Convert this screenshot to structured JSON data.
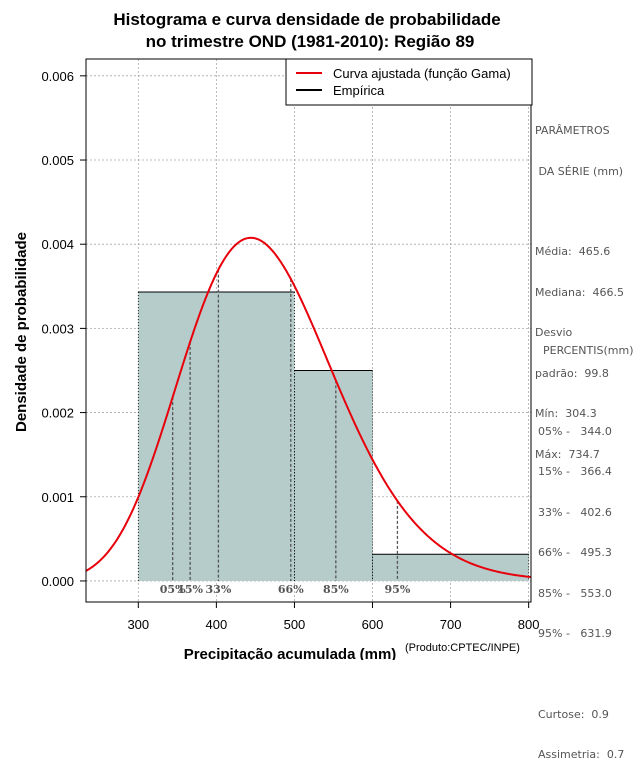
{
  "chart_data": {
    "type": "bar",
    "title_lines": [
      "Histograma e curva densidade de probabilidade",
      "no trimestre OND (1981-2010): Região 89"
    ],
    "xlabel": "Precipitação acumulada (mm)",
    "ylabel": "Densidade de probabilidade",
    "product_note": "(Produto:CPTEC/INPE)",
    "xlim": [
      233,
      803
    ],
    "ylim": [
      -0.00025,
      0.0062
    ],
    "xticks": [
      300,
      400,
      500,
      600,
      700,
      800
    ],
    "yticks": [
      0.0,
      0.001,
      0.002,
      0.003,
      0.004,
      0.005,
      0.006
    ],
    "ytick_labels": [
      "0.000",
      "0.001",
      "0.002",
      "0.003",
      "0.004",
      "0.005",
      "0.006"
    ],
    "grid": true,
    "bins": [
      {
        "from": 300,
        "to": 500,
        "density": 0.003433
      },
      {
        "from": 500,
        "to": 600,
        "density": 0.0025
      },
      {
        "from": 600,
        "to": 800,
        "density": 0.000317
      }
    ],
    "gamma_fit": {
      "mean": 465.6,
      "sd": 99.8
    },
    "percentiles": [
      {
        "label": "05%",
        "value": 344.0
      },
      {
        "label": "15%",
        "value": 366.4
      },
      {
        "label": "33%",
        "value": 402.6
      },
      {
        "label": "66%",
        "value": 495.3
      },
      {
        "label": "85%",
        "value": 553.0
      },
      {
        "label": "95%",
        "value": 631.9
      }
    ],
    "legend": {
      "position": "top-right",
      "entries": [
        {
          "label": "Curva ajustada (função Gama)",
          "color": "#e8000b"
        },
        {
          "label": "Empírica",
          "color": "#000000"
        }
      ]
    },
    "colors": {
      "bar": "#b5cccb",
      "curve": "#e8000b",
      "grid": "#a8a8a8",
      "axis": "#000000",
      "percentile_line": "#555555",
      "percentile_text": "#555555"
    }
  },
  "stats_panel": {
    "heading1": "PARÂMETROS",
    "heading2": " DA SÉRIE (mm)",
    "media": "Média:  465.6",
    "mediana": "Mediana:  466.5",
    "desvio1": "Desvio",
    "desvio2": "padrão:  99.8",
    "min": "Mín:  304.3",
    "max": "Máx:  734.7"
  },
  "percentis_panel": {
    "heading": "PERCENTIS(mm)",
    "rows": [
      "05% -   344.0",
      "15% -   366.4",
      "33% -   402.6",
      "66% -   495.3",
      "85% -   553.0",
      "95% -   631.9"
    ],
    "curtose": "Curtose:  0.9",
    "assimetria": "Assimetria:  0.7"
  }
}
